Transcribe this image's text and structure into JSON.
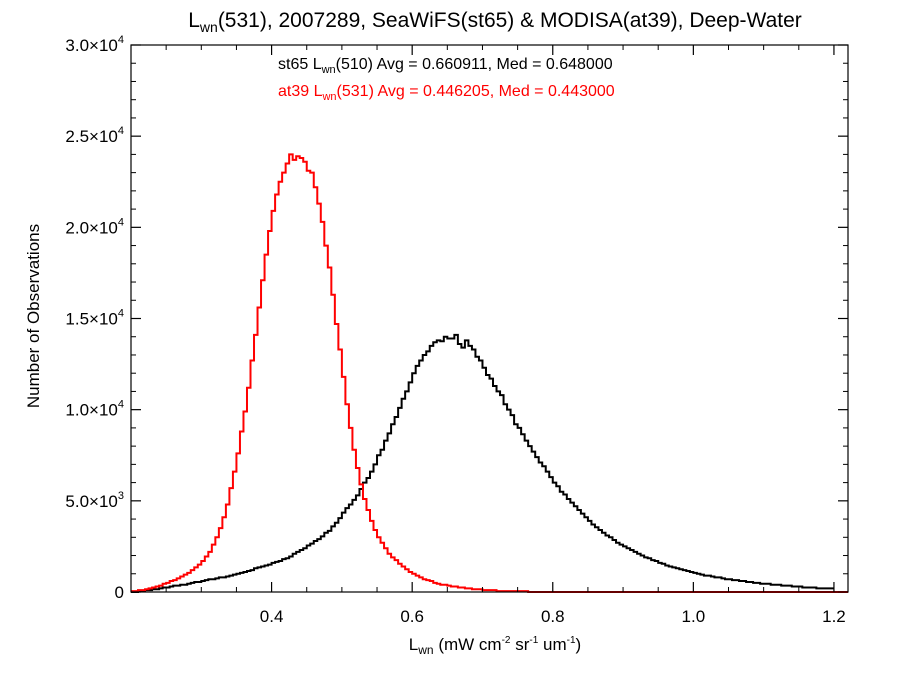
{
  "chart_data": {
    "type": "histogram",
    "title": {
      "base": "L",
      "sub": "wn",
      "rest": "(531), 2007289, SeaWiFS(st65) & MODISA(at39), Deep-Water"
    },
    "xlabel": {
      "base": "L",
      "sub": "wn",
      "rest": " (mW cm",
      "sup1": "-2",
      "mid": " sr",
      "sup2": "-1",
      "mid2": " um",
      "sup3": "-1",
      "end": ")"
    },
    "ylabel": "Number of Observations",
    "xlim": [
      0.2,
      1.22
    ],
    "ylim": [
      0,
      30000
    ],
    "x_ticks": [
      {
        "value": 0.4,
        "label": "0.4"
      },
      {
        "value": 0.6,
        "label": "0.6"
      },
      {
        "value": 0.8,
        "label": "0.8"
      },
      {
        "value": 1.0,
        "label": "1.0"
      },
      {
        "value": 1.2,
        "label": "1.2"
      }
    ],
    "y_ticks": [
      {
        "value": 0,
        "mant": "0",
        "exp": ""
      },
      {
        "value": 5000,
        "mant": "5.0×10",
        "exp": "3"
      },
      {
        "value": 10000,
        "mant": "1.0×10",
        "exp": "4"
      },
      {
        "value": 15000,
        "mant": "1.5×10",
        "exp": "4"
      },
      {
        "value": 20000,
        "mant": "2.0×10",
        "exp": "4"
      },
      {
        "value": 25000,
        "mant": "2.5×10",
        "exp": "4"
      },
      {
        "value": 30000,
        "mant": "3.0×10",
        "exp": "4"
      }
    ],
    "bin_width": 0.005,
    "grid": false,
    "annotations": [
      {
        "prefix": "st65 L",
        "sub": "wn",
        "suffix": "(510) Avg = 0.660911, Med = 0.648000",
        "color": "#000000"
      },
      {
        "prefix": "at39 L",
        "sub": "wn",
        "suffix": "(531) Avg = 0.446205, Med = 0.443000",
        "color": "#ff0000"
      }
    ],
    "series": [
      {
        "color": "#000000",
        "x_start": 0.2,
        "values": [
          0,
          0,
          50,
          50,
          100,
          100,
          150,
          150,
          200,
          250,
          250,
          300,
          350,
          350,
          400,
          400,
          450,
          500,
          550,
          550,
          600,
          650,
          700,
          700,
          750,
          800,
          800,
          850,
          900,
          950,
          1000,
          1050,
          1100,
          1150,
          1200,
          1300,
          1350,
          1400,
          1450,
          1500,
          1600,
          1650,
          1700,
          1800,
          1850,
          1950,
          2100,
          2200,
          2300,
          2400,
          2550,
          2650,
          2800,
          2900,
          3050,
          3250,
          3350,
          3600,
          3800,
          4050,
          4350,
          4600,
          4800,
          5050,
          5300,
          5650,
          6000,
          6250,
          6600,
          7000,
          7500,
          7800,
          8300,
          8700,
          9200,
          9600,
          10100,
          10600,
          11000,
          11500,
          12000,
          12400,
          12700,
          13000,
          13200,
          13500,
          13700,
          13800,
          13750,
          14000,
          13900,
          13900,
          14100,
          13600,
          13400,
          13800,
          13500,
          13300,
          12900,
          12700,
          12300,
          11900,
          11700,
          11300,
          11000,
          10800,
          10300,
          10000,
          9700,
          9200,
          9000,
          8650,
          8300,
          8000,
          7700,
          7400,
          7100,
          6900,
          6600,
          6300,
          6000,
          5800,
          5500,
          5350,
          5100,
          4900,
          4700,
          4500,
          4300,
          4100,
          3900,
          3700,
          3550,
          3400,
          3250,
          3100,
          3000,
          2850,
          2700,
          2600,
          2500,
          2400,
          2300,
          2200,
          2100,
          2000,
          1900,
          1850,
          1750,
          1700,
          1600,
          1550,
          1450,
          1400,
          1350,
          1300,
          1250,
          1200,
          1150,
          1100,
          1050,
          1000,
          950,
          900,
          900,
          850,
          800,
          800,
          750,
          700,
          700,
          650,
          650,
          600,
          600,
          550,
          550,
          500,
          500,
          450,
          450,
          450,
          400,
          400,
          400,
          350,
          350,
          350,
          300,
          300,
          300,
          250,
          250,
          250,
          250,
          200,
          200,
          200,
          200,
          200
        ]
      },
      {
        "color": "#ff0000",
        "x_start": 0.2,
        "values": [
          50,
          50,
          100,
          100,
          150,
          200,
          250,
          300,
          350,
          450,
          500,
          600,
          650,
          750,
          850,
          950,
          1050,
          1200,
          1350,
          1500,
          1700,
          1950,
          2200,
          2600,
          3000,
          3500,
          4100,
          4800,
          5700,
          6600,
          7600,
          8800,
          9900,
          11200,
          12700,
          14100,
          15600,
          17100,
          18500,
          19800,
          20900,
          21800,
          22500,
          23000,
          23500,
          24000,
          23700,
          23900,
          23800,
          23600,
          23100,
          23000,
          22200,
          21300,
          20300,
          19000,
          17800,
          16300,
          14700,
          13300,
          11800,
          10300,
          9000,
          7800,
          6800,
          5900,
          5100,
          4500,
          3900,
          3400,
          3000,
          2700,
          2400,
          2100,
          1900,
          1750,
          1550,
          1400,
          1250,
          1100,
          1000,
          900,
          800,
          700,
          650,
          600,
          500,
          450,
          400,
          400,
          350,
          300,
          300,
          250,
          250,
          200,
          200,
          150,
          150,
          150,
          100,
          100,
          100,
          100,
          50,
          50,
          50,
          50,
          50,
          50,
          50,
          50,
          50,
          0,
          0,
          0,
          0,
          0,
          0,
          0,
          0,
          0,
          0,
          0,
          0,
          0,
          0,
          0,
          0,
          0,
          0,
          0,
          0,
          0,
          0,
          0,
          0,
          0,
          0,
          0,
          0,
          0,
          0,
          0,
          0,
          0,
          0,
          0,
          0,
          0,
          0,
          0,
          0,
          0,
          0,
          0,
          0,
          0,
          0,
          0,
          0,
          0,
          0,
          0,
          0,
          0,
          0,
          0,
          0,
          0,
          0,
          0,
          0,
          0,
          0,
          0,
          0,
          0,
          0,
          0,
          0,
          0,
          0,
          0,
          0,
          0,
          0,
          0,
          0,
          0,
          0,
          0,
          0,
          0,
          0,
          0,
          0,
          0,
          0,
          0,
          0,
          0,
          0,
          0,
          0,
          0,
          0,
          0,
          0,
          0,
          0,
          0,
          0
        ]
      }
    ]
  }
}
